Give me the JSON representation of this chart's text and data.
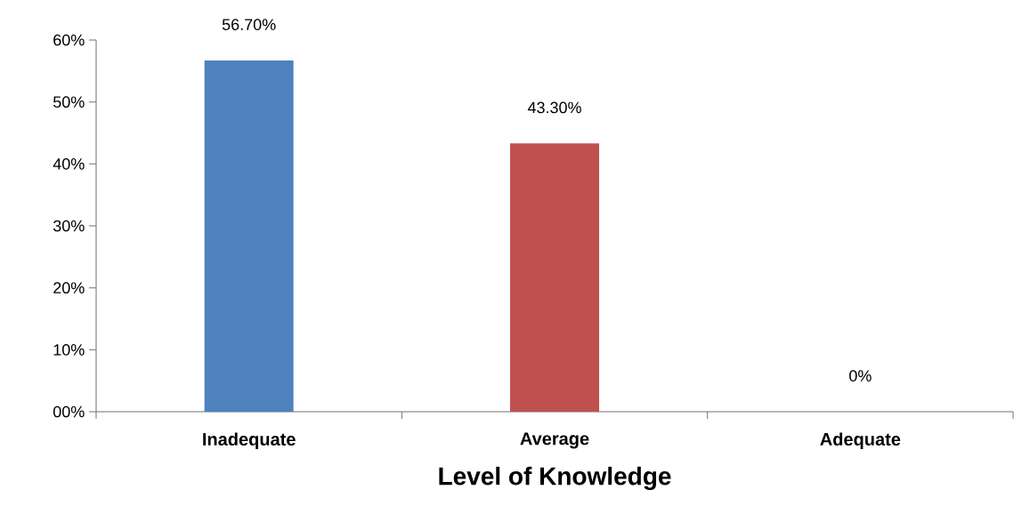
{
  "chart_data": {
    "type": "bar",
    "xlabel": "Level of Knowledge",
    "categories": [
      "Inadequate",
      "Average",
      "Adequate"
    ],
    "values": [
      56.7,
      43.3,
      0
    ],
    "colors": [
      "#4f81bd",
      "#c0504d",
      "#9bbb59"
    ],
    "value_labels": [
      "56.70%",
      "43.30%",
      "0%"
    ],
    "ylim": [
      0,
      60
    ],
    "yticks": [
      {
        "value": 0,
        "label": "00%"
      },
      {
        "value": 10,
        "label": "10%"
      },
      {
        "value": 20,
        "label": "20%"
      },
      {
        "value": 30,
        "label": "30%"
      },
      {
        "value": 40,
        "label": "40%"
      },
      {
        "value": 50,
        "label": "50%"
      },
      {
        "value": 60,
        "label": "60%"
      }
    ],
    "grid": false
  }
}
